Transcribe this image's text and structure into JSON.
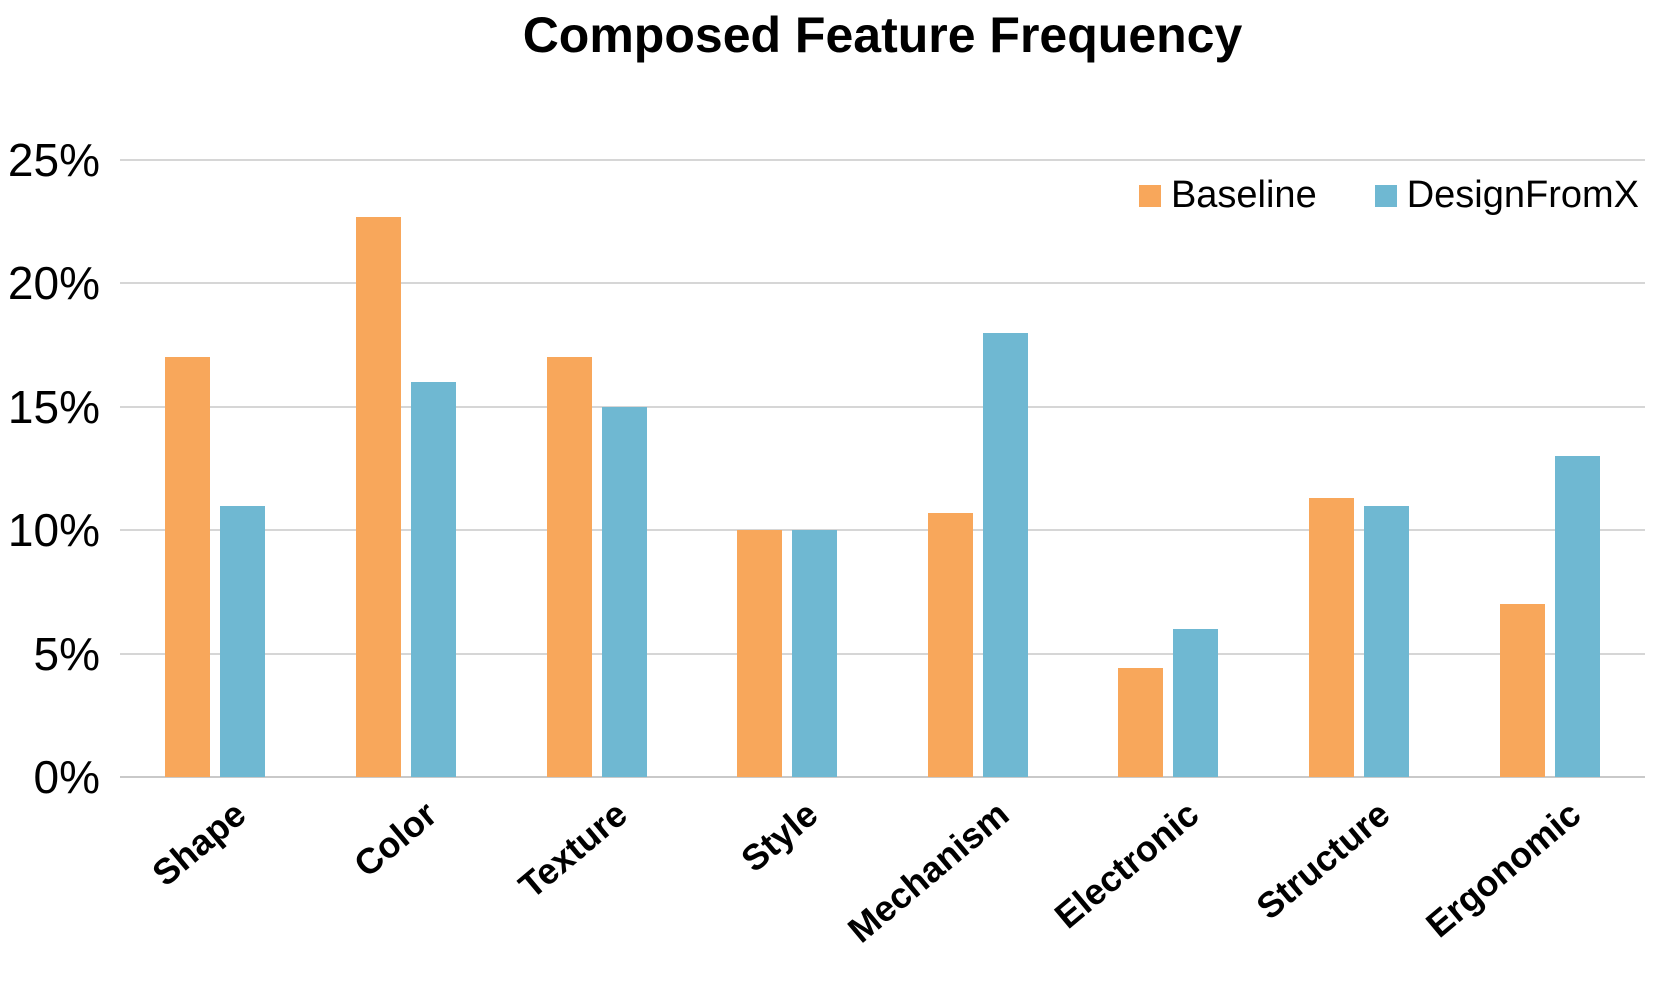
{
  "chart_data": {
    "type": "bar",
    "title": "Composed Feature Frequency",
    "categories": [
      "Shape",
      "Color",
      "Texture",
      "Style",
      "Mechanism",
      "Electronic",
      "Structure",
      "Ergonomic"
    ],
    "series": [
      {
        "name": "Baseline",
        "color": "#F8A75B",
        "values": [
          17,
          22.7,
          17,
          10,
          10.7,
          4.4,
          11.3,
          7
        ]
      },
      {
        "name": "DesignFromX",
        "color": "#6FB8D2",
        "values": [
          11,
          16,
          15,
          10,
          18,
          6,
          11,
          13
        ]
      }
    ],
    "y_axis": {
      "ticks": [
        "0%",
        "5%",
        "10%",
        "15%",
        "20%",
        "25%"
      ],
      "min": 0,
      "max": 25,
      "step": 5,
      "unit": "%"
    },
    "grid": true,
    "legend_position": "top-right",
    "background_color": "#ffffff",
    "gridline_color": "#d6d6d6"
  }
}
